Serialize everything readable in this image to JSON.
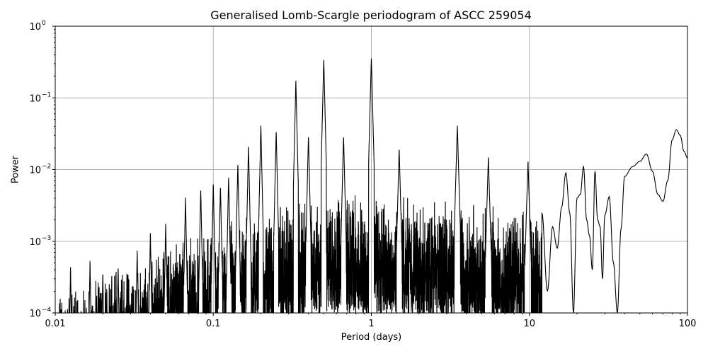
{
  "chart_data": {
    "type": "line",
    "title": "Generalised Lomb-Scargle periodogram of ASCC 259054",
    "xlabel": "Period (days)",
    "ylabel": "Power",
    "xscale": "log",
    "yscale": "log",
    "xlim": [
      0.01,
      100
    ],
    "ylim": [
      0.0001,
      1
    ],
    "grid": true,
    "xticks": [
      "0.01",
      "0.1",
      "1",
      "10",
      "100"
    ],
    "xtick_values": [
      0.01,
      0.1,
      1,
      10,
      100
    ],
    "yticks": [
      "10^-4",
      "10^-3",
      "10^-2",
      "10^-1",
      "10^0"
    ],
    "ytick_values": [
      0.0001,
      0.001,
      0.01,
      0.1,
      1
    ],
    "line_color": "#000000",
    "grid_color": "#b0b0b0",
    "peaks": [
      {
        "x": 0.0125,
        "y": 0.00045
      },
      {
        "x": 0.0166,
        "y": 0.00055
      },
      {
        "x": 0.02,
        "y": 0.00038
      },
      {
        "x": 0.025,
        "y": 0.00045
      },
      {
        "x": 0.033,
        "y": 0.00075
      },
      {
        "x": 0.04,
        "y": 0.0013
      },
      {
        "x": 0.05,
        "y": 0.0018
      },
      {
        "x": 0.0667,
        "y": 0.0042
      },
      {
        "x": 0.0833,
        "y": 0.0055
      },
      {
        "x": 0.1,
        "y": 0.0066
      },
      {
        "x": 0.111,
        "y": 0.006
      },
      {
        "x": 0.125,
        "y": 0.008
      },
      {
        "x": 0.143,
        "y": 0.0125
      },
      {
        "x": 0.167,
        "y": 0.022
      },
      {
        "x": 0.2,
        "y": 0.042
      },
      {
        "x": 0.25,
        "y": 0.035
      },
      {
        "x": 0.333,
        "y": 0.175
      },
      {
        "x": 0.4,
        "y": 0.03
      },
      {
        "x": 0.5,
        "y": 0.35
      },
      {
        "x": 0.667,
        "y": 0.03
      },
      {
        "x": 1.0,
        "y": 0.37
      },
      {
        "x": 1.5,
        "y": 0.02
      },
      {
        "x": 3.5,
        "y": 0.042
      },
      {
        "x": 5.5,
        "y": 0.015
      },
      {
        "x": 9.8,
        "y": 0.013
      },
      {
        "x": 17.8,
        "y": 0.01
      },
      {
        "x": 22.0,
        "y": 0.011
      },
      {
        "x": 26.0,
        "y": 0.0095
      },
      {
        "x": 55.0,
        "y": 0.0165
      },
      {
        "x": 85.0,
        "y": 0.036
      }
    ],
    "smooth_tail": {
      "x": [
        12,
        13,
        14,
        15,
        16,
        17,
        18,
        19,
        20,
        21,
        22,
        23,
        24,
        25,
        26,
        27,
        28,
        29,
        30,
        32,
        34,
        36,
        38,
        40,
        45,
        50,
        55,
        60,
        65,
        70,
        75,
        80,
        85,
        90,
        95,
        100
      ],
      "y": [
        0.0025,
        0.0002,
        0.0016,
        0.0008,
        0.003,
        0.009,
        0.0025,
        0.0001,
        0.004,
        0.0045,
        0.011,
        0.002,
        0.0012,
        0.0004,
        0.0095,
        0.002,
        0.0016,
        0.0003,
        0.0023,
        0.0042,
        0.0005,
        0.0001,
        0.0015,
        0.008,
        0.011,
        0.013,
        0.0165,
        0.0095,
        0.0045,
        0.0036,
        0.007,
        0.026,
        0.036,
        0.03,
        0.018,
        0.0145
      ]
    }
  }
}
